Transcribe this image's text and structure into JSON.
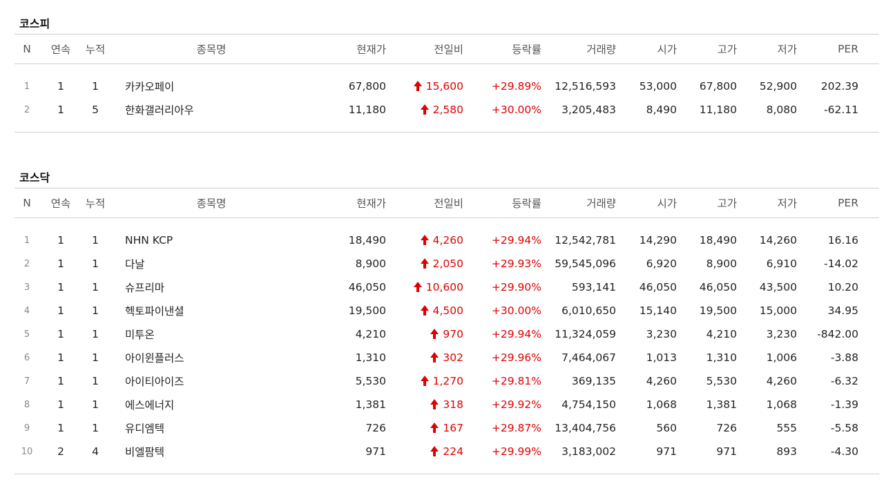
{
  "headers": {
    "n": "N",
    "consecutive": "연속",
    "cumulative": "누적",
    "name": "종목명",
    "price": "현재가",
    "change": "전일비",
    "rate": "등락률",
    "volume": "거래량",
    "open": "시가",
    "high": "고가",
    "low": "저가",
    "per": "PER"
  },
  "kospi": {
    "title": "코스피",
    "rows": [
      {
        "n": "1",
        "cons": "1",
        "cum": "1",
        "name": "카카오페이",
        "price": "67,800",
        "change": "15,600",
        "rate": "+29.89%",
        "volume": "12,516,593",
        "open": "53,000",
        "high": "67,800",
        "low": "52,900",
        "per": "202.39"
      },
      {
        "n": "2",
        "cons": "1",
        "cum": "5",
        "name": "한화갤러리아우",
        "price": "11,180",
        "change": "2,580",
        "rate": "+30.00%",
        "volume": "3,205,483",
        "open": "8,490",
        "high": "11,180",
        "low": "8,080",
        "per": "-62.11"
      }
    ]
  },
  "kosdaq": {
    "title": "코스닥",
    "rows": [
      {
        "n": "1",
        "cons": "1",
        "cum": "1",
        "name": "NHN KCP",
        "price": "18,490",
        "change": "4,260",
        "rate": "+29.94%",
        "volume": "12,542,781",
        "open": "14,290",
        "high": "18,490",
        "low": "14,260",
        "per": "16.16"
      },
      {
        "n": "2",
        "cons": "1",
        "cum": "1",
        "name": "다날",
        "price": "8,900",
        "change": "2,050",
        "rate": "+29.93%",
        "volume": "59,545,096",
        "open": "6,920",
        "high": "8,900",
        "low": "6,910",
        "per": "-14.02"
      },
      {
        "n": "3",
        "cons": "1",
        "cum": "1",
        "name": "슈프리마",
        "price": "46,050",
        "change": "10,600",
        "rate": "+29.90%",
        "volume": "593,141",
        "open": "46,050",
        "high": "46,050",
        "low": "43,500",
        "per": "10.20"
      },
      {
        "n": "4",
        "cons": "1",
        "cum": "1",
        "name": "헥토파이낸셜",
        "price": "19,500",
        "change": "4,500",
        "rate": "+30.00%",
        "volume": "6,010,650",
        "open": "15,140",
        "high": "19,500",
        "low": "15,000",
        "per": "34.95"
      },
      {
        "n": "5",
        "cons": "1",
        "cum": "1",
        "name": "미투온",
        "price": "4,210",
        "change": "970",
        "rate": "+29.94%",
        "volume": "11,324,059",
        "open": "3,230",
        "high": "4,210",
        "low": "3,230",
        "per": "-842.00"
      },
      {
        "n": "6",
        "cons": "1",
        "cum": "1",
        "name": "아이윈플러스",
        "price": "1,310",
        "change": "302",
        "rate": "+29.96%",
        "volume": "7,464,067",
        "open": "1,013",
        "high": "1,310",
        "low": "1,006",
        "per": "-3.88"
      },
      {
        "n": "7",
        "cons": "1",
        "cum": "1",
        "name": "아이티아이즈",
        "price": "5,530",
        "change": "1,270",
        "rate": "+29.81%",
        "volume": "369,135",
        "open": "4,260",
        "high": "5,530",
        "low": "4,260",
        "per": "-6.32"
      },
      {
        "n": "8",
        "cons": "1",
        "cum": "1",
        "name": "에스에너지",
        "price": "1,381",
        "change": "318",
        "rate": "+29.92%",
        "volume": "4,754,150",
        "open": "1,068",
        "high": "1,381",
        "low": "1,068",
        "per": "-1.39"
      },
      {
        "n": "9",
        "cons": "1",
        "cum": "1",
        "name": "유디엠텍",
        "price": "726",
        "change": "167",
        "rate": "+29.87%",
        "volume": "13,404,756",
        "open": "560",
        "high": "726",
        "low": "555",
        "per": "-5.58"
      },
      {
        "n": "10",
        "cons": "2",
        "cum": "4",
        "name": "비엘팜텍",
        "price": "971",
        "change": "224",
        "rate": "+29.99%",
        "volume": "3,183,002",
        "open": "971",
        "high": "971",
        "low": "893",
        "per": "-4.30"
      }
    ]
  },
  "colors": {
    "up": "#e00000",
    "border": "#cfcfcf"
  },
  "icons": {
    "change_direction": "up-arrow-icon"
  }
}
